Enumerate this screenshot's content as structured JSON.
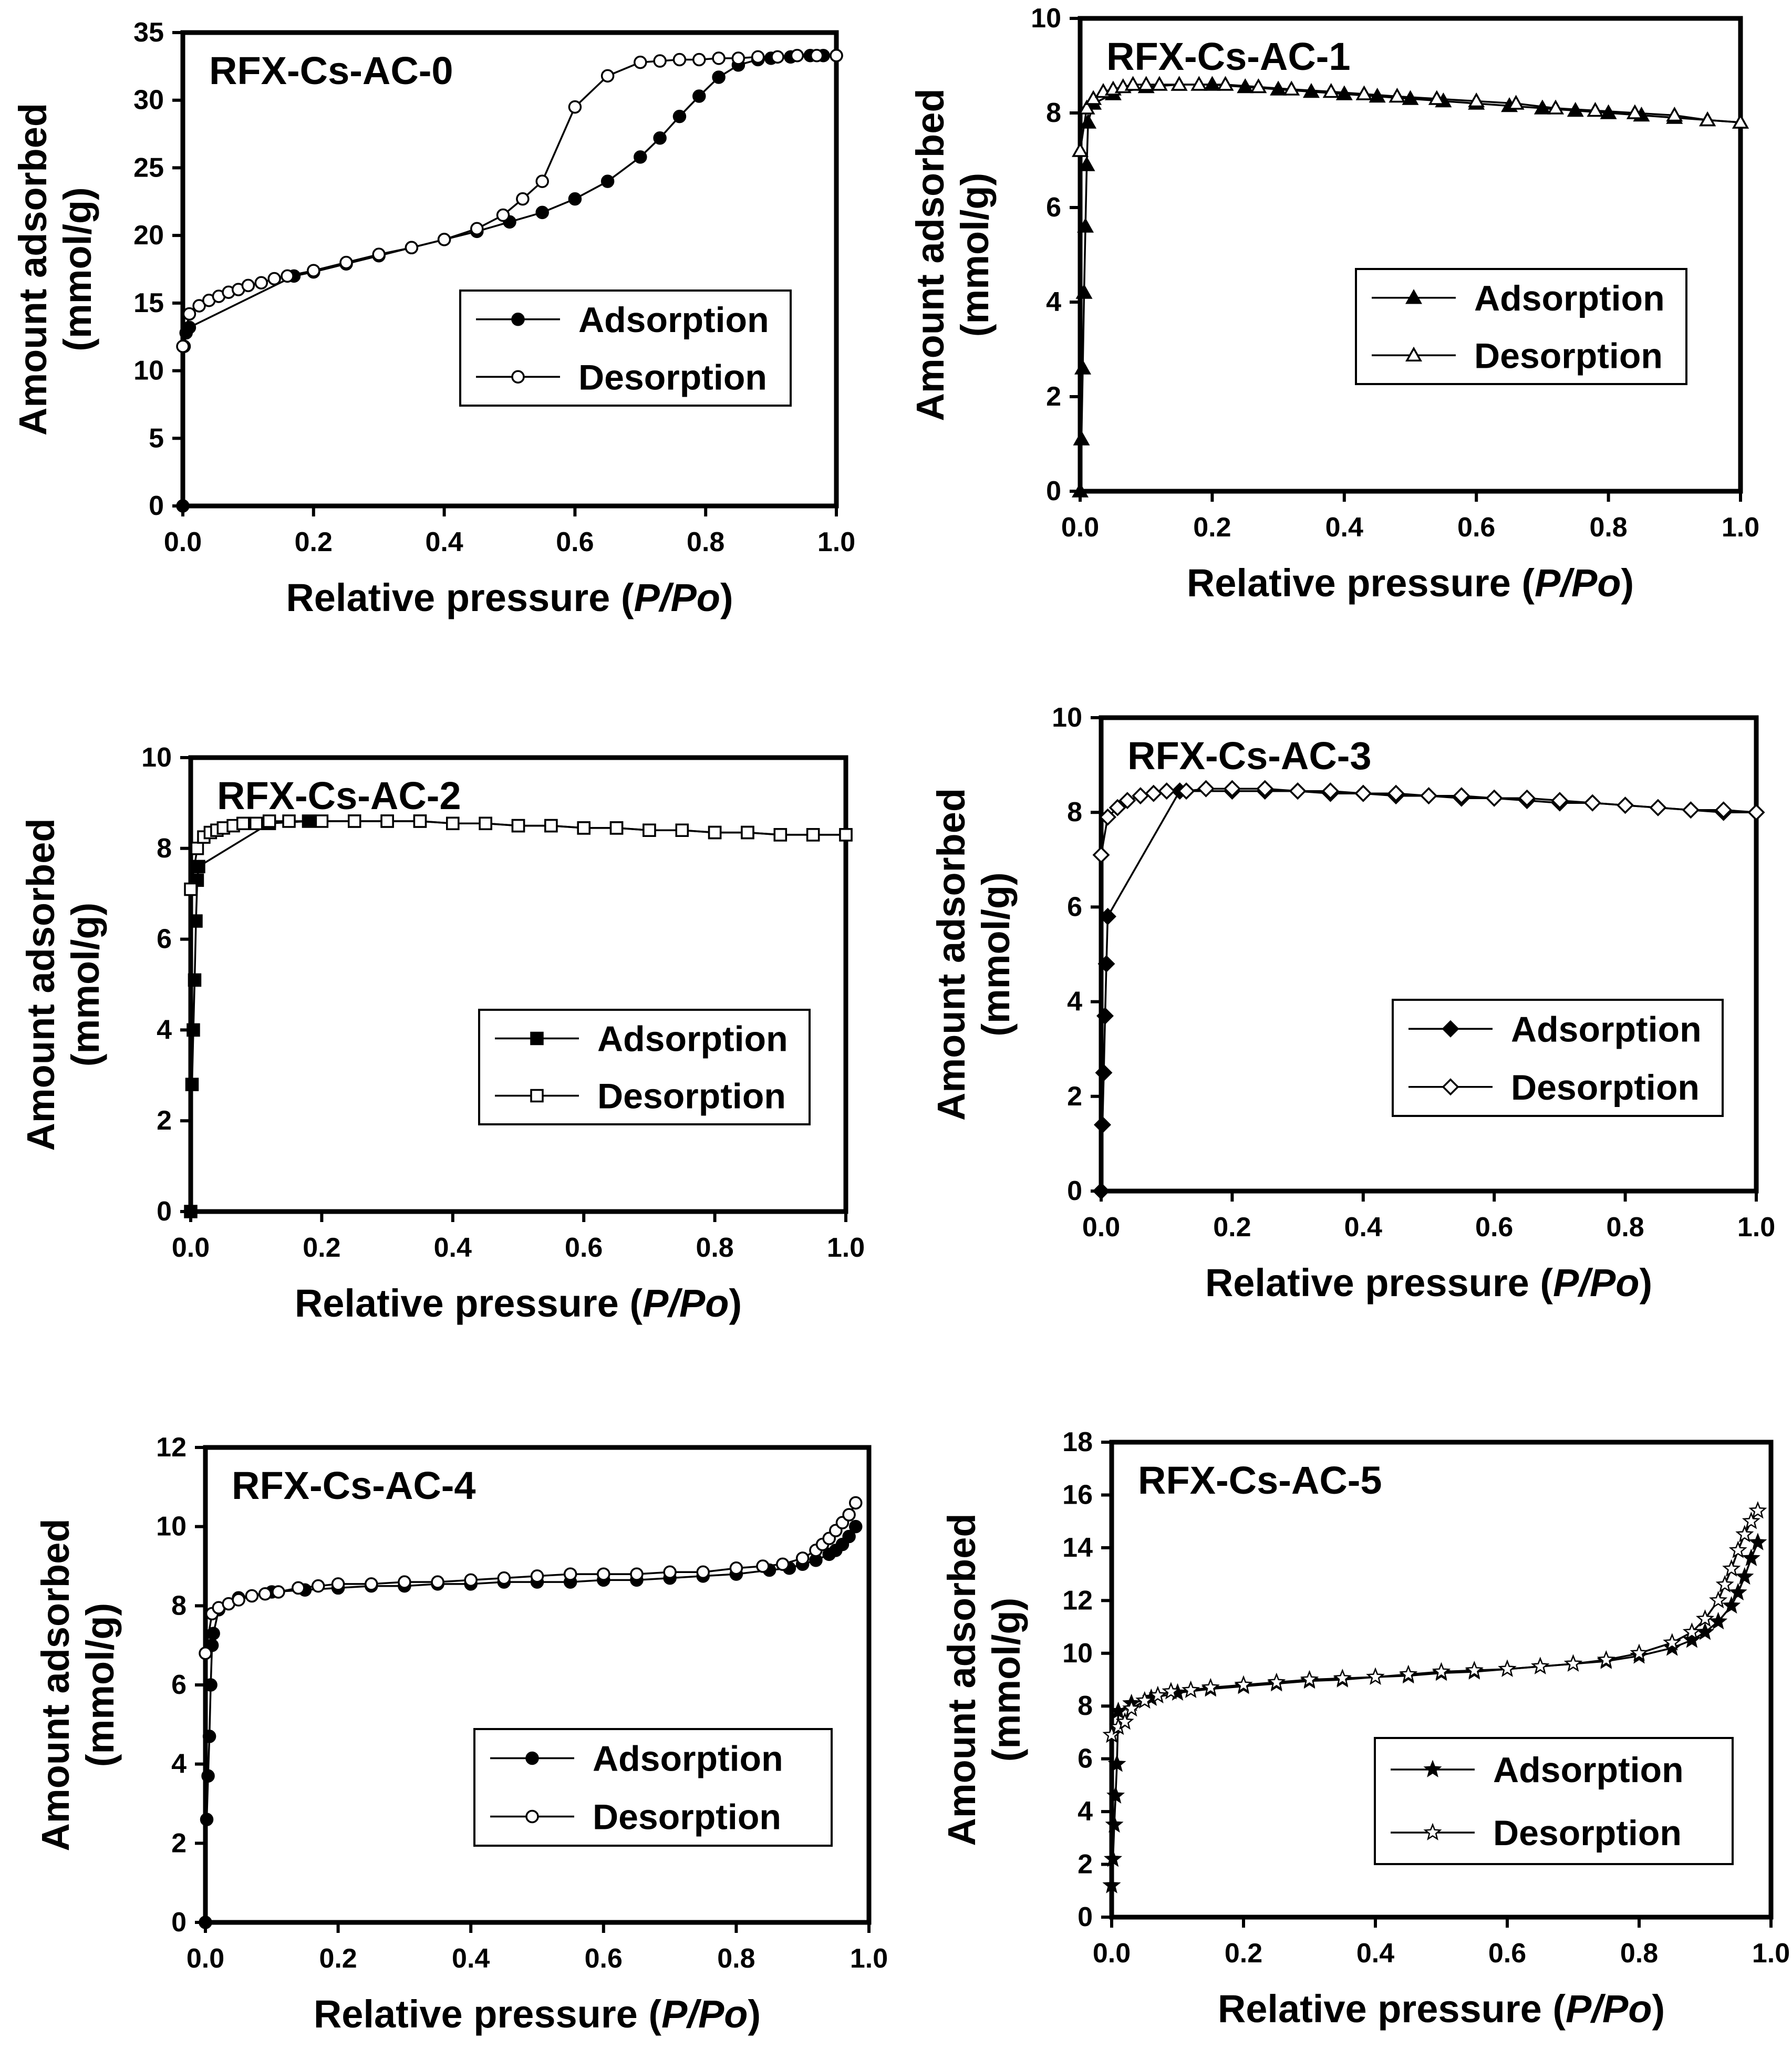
{
  "chart_data": [
    {
      "type": "scatter",
      "title": "RFX-Cs-AC-0",
      "xlabel_main": "Relative pressure (",
      "xlabel_italic": "P/Po",
      "xlabel_end": ")",
      "ylabel_line1": "Amount adsorbed",
      "ylabel_line2": "(mmol/g)",
      "xlim": [
        0,
        1
      ],
      "ylim": [
        0,
        35
      ],
      "xticks": [
        "0.0",
        "0.2",
        "0.4",
        "0.6",
        "0.8",
        "1.0"
      ],
      "yticks": [
        "0",
        "5",
        "10",
        "15",
        "20",
        "25",
        "30",
        "35"
      ],
      "grid": false,
      "legend_position": "center-right",
      "series": [
        {
          "name": "Adsorption",
          "marker": "circle-filled",
          "x": [
            0.0,
            0.002,
            0.005,
            0.01,
            0.17,
            0.2,
            0.25,
            0.3,
            0.35,
            0.4,
            0.45,
            0.5,
            0.55,
            0.6,
            0.65,
            0.7,
            0.73,
            0.76,
            0.79,
            0.82,
            0.85,
            0.88,
            0.9,
            0.93,
            0.96,
            0.98,
            1.0
          ],
          "y": [
            0,
            11.8,
            12.8,
            13.2,
            17.0,
            17.3,
            17.9,
            18.5,
            19.1,
            19.7,
            20.3,
            21.0,
            21.7,
            22.7,
            24.0,
            25.8,
            27.2,
            28.8,
            30.3,
            31.7,
            32.6,
            33.0,
            33.1,
            33.2,
            33.3,
            33.3,
            33.3
          ]
        },
        {
          "name": "Desorption",
          "marker": "circle-open",
          "x": [
            0.0,
            0.01,
            0.025,
            0.04,
            0.055,
            0.07,
            0.085,
            0.1,
            0.12,
            0.14,
            0.16,
            0.2,
            0.25,
            0.3,
            0.35,
            0.4,
            0.45,
            0.49,
            0.52,
            0.55,
            0.6,
            0.65,
            0.7,
            0.73,
            0.76,
            0.79,
            0.82,
            0.85,
            0.88,
            0.91,
            0.94,
            0.97,
            1.0
          ],
          "y": [
            11.8,
            14.2,
            14.8,
            15.2,
            15.5,
            15.8,
            16.0,
            16.3,
            16.5,
            16.8,
            17.0,
            17.4,
            18.0,
            18.6,
            19.1,
            19.7,
            20.5,
            21.5,
            22.7,
            24.0,
            29.5,
            31.8,
            32.8,
            32.9,
            33.0,
            33.0,
            33.1,
            33.1,
            33.2,
            33.2,
            33.3,
            33.3,
            33.3
          ]
        }
      ]
    },
    {
      "type": "scatter",
      "title": "RFX-Cs-AC-1",
      "xlabel_main": "Relative pressure (",
      "xlabel_italic": "P/Po",
      "xlabel_end": ")",
      "ylabel_line1": "Amount adsorbed",
      "ylabel_line2": "(mmol/g)",
      "xlim": [
        0,
        1
      ],
      "ylim": [
        0,
        10
      ],
      "xticks": [
        "0.0",
        "0.2",
        "0.4",
        "0.6",
        "0.8",
        "1.0"
      ],
      "yticks": [
        "0",
        "2",
        "4",
        "6",
        "8",
        "10"
      ],
      "grid": false,
      "legend_position": "center-right",
      "series": [
        {
          "name": "Adsorption",
          "marker": "triangle-filled",
          "x": [
            0.0,
            0.002,
            0.004,
            0.006,
            0.008,
            0.01,
            0.012,
            0.02,
            0.05,
            0.1,
            0.15,
            0.2,
            0.25,
            0.3,
            0.35,
            0.4,
            0.45,
            0.5,
            0.55,
            0.6,
            0.65,
            0.7,
            0.75,
            0.8,
            0.85,
            0.9,
            0.95,
            1.0
          ],
          "y": [
            0,
            1.1,
            2.6,
            4.2,
            5.6,
            6.9,
            7.8,
            8.2,
            8.4,
            8.55,
            8.6,
            8.6,
            8.55,
            8.5,
            8.45,
            8.4,
            8.35,
            8.3,
            8.25,
            8.2,
            8.15,
            8.1,
            8.05,
            8.0,
            7.95,
            7.9,
            7.85,
            7.8
          ]
        },
        {
          "name": "Desorption",
          "marker": "triangle-open",
          "x": [
            0.0,
            0.01,
            0.02,
            0.035,
            0.05,
            0.065,
            0.08,
            0.1,
            0.12,
            0.15,
            0.18,
            0.22,
            0.27,
            0.32,
            0.38,
            0.43,
            0.48,
            0.54,
            0.6,
            0.66,
            0.72,
            0.78,
            0.84,
            0.9,
            0.95,
            1.0
          ],
          "y": [
            7.2,
            8.1,
            8.3,
            8.45,
            8.5,
            8.55,
            8.6,
            8.6,
            8.6,
            8.6,
            8.6,
            8.6,
            8.55,
            8.5,
            8.45,
            8.4,
            8.35,
            8.3,
            8.25,
            8.2,
            8.1,
            8.05,
            8.0,
            7.95,
            7.85,
            7.8
          ]
        }
      ]
    },
    {
      "type": "scatter",
      "title": "RFX-Cs-AC-2",
      "xlabel_main": "Relative pressure (",
      "xlabel_italic": "P/Po",
      "xlabel_end": ")",
      "ylabel_line1": "Amount adsorbed",
      "ylabel_line2": "(mmol/g)",
      "xlim": [
        0,
        1
      ],
      "ylim": [
        0,
        10
      ],
      "xticks": [
        "0.0",
        "0.2",
        "0.4",
        "0.6",
        "0.8",
        "1.0"
      ],
      "yticks": [
        "0",
        "2",
        "4",
        "6",
        "8",
        "10"
      ],
      "grid": false,
      "legend_position": "center-right",
      "series": [
        {
          "name": "Adsorption",
          "marker": "square-filled",
          "x": [
            0.0,
            0.002,
            0.004,
            0.006,
            0.008,
            0.01,
            0.012,
            0.12,
            0.18,
            0.25,
            0.3,
            0.35,
            0.4,
            0.45,
            0.5,
            0.55,
            0.6,
            0.65,
            0.7,
            0.75,
            0.8,
            0.85,
            0.9,
            0.95,
            1.0
          ],
          "y": [
            0,
            2.8,
            4.0,
            5.1,
            6.4,
            7.3,
            7.6,
            8.55,
            8.6,
            8.6,
            8.6,
            8.6,
            8.55,
            8.55,
            8.5,
            8.5,
            8.45,
            8.45,
            8.4,
            8.4,
            8.35,
            8.35,
            8.3,
            8.3,
            8.3
          ]
        },
        {
          "name": "Desorption",
          "marker": "square-open",
          "x": [
            0.0,
            0.01,
            0.02,
            0.03,
            0.04,
            0.05,
            0.065,
            0.08,
            0.1,
            0.12,
            0.15,
            0.2,
            0.25,
            0.3,
            0.35,
            0.4,
            0.45,
            0.5,
            0.55,
            0.6,
            0.65,
            0.7,
            0.75,
            0.8,
            0.85,
            0.9,
            0.95,
            1.0
          ],
          "y": [
            7.1,
            8.0,
            8.25,
            8.35,
            8.4,
            8.45,
            8.5,
            8.55,
            8.55,
            8.6,
            8.6,
            8.6,
            8.6,
            8.6,
            8.6,
            8.55,
            8.55,
            8.5,
            8.5,
            8.45,
            8.45,
            8.4,
            8.4,
            8.35,
            8.35,
            8.3,
            8.3,
            8.3
          ]
        }
      ]
    },
    {
      "type": "scatter",
      "title": "RFX-Cs-AC-3",
      "xlabel_main": "Relative pressure (",
      "xlabel_italic": "P/Po",
      "xlabel_end": ")",
      "ylabel_line1": "Amount adsorbed",
      "ylabel_line2": "(mmol/g)",
      "xlim": [
        0,
        1
      ],
      "ylim": [
        0,
        10
      ],
      "xticks": [
        "0.0",
        "0.2",
        "0.4",
        "0.6",
        "0.8",
        "1.0"
      ],
      "yticks": [
        "0",
        "2",
        "4",
        "6",
        "8",
        "10"
      ],
      "grid": false,
      "legend_position": "center-right",
      "series": [
        {
          "name": "Adsorption",
          "marker": "diamond-filled",
          "x": [
            0.0,
            0.002,
            0.004,
            0.006,
            0.008,
            0.01,
            0.12,
            0.2,
            0.25,
            0.3,
            0.35,
            0.4,
            0.45,
            0.5,
            0.55,
            0.6,
            0.65,
            0.7,
            0.75,
            0.8,
            0.85,
            0.9,
            0.95,
            1.0
          ],
          "y": [
            0,
            1.4,
            2.5,
            3.7,
            4.8,
            5.8,
            8.45,
            8.45,
            8.45,
            8.45,
            8.4,
            8.4,
            8.35,
            8.35,
            8.3,
            8.3,
            8.25,
            8.2,
            8.2,
            8.15,
            8.1,
            8.05,
            8.0,
            8.0
          ]
        },
        {
          "name": "Desorption",
          "marker": "diamond-open",
          "x": [
            0.0,
            0.01,
            0.025,
            0.04,
            0.06,
            0.08,
            0.1,
            0.13,
            0.16,
            0.2,
            0.25,
            0.3,
            0.35,
            0.4,
            0.45,
            0.5,
            0.55,
            0.6,
            0.65,
            0.7,
            0.75,
            0.8,
            0.85,
            0.9,
            0.95,
            1.0
          ],
          "y": [
            7.1,
            7.9,
            8.1,
            8.25,
            8.35,
            8.4,
            8.45,
            8.45,
            8.5,
            8.5,
            8.5,
            8.45,
            8.45,
            8.4,
            8.4,
            8.35,
            8.35,
            8.3,
            8.3,
            8.25,
            8.2,
            8.15,
            8.1,
            8.05,
            8.05,
            8.0
          ]
        }
      ]
    },
    {
      "type": "scatter",
      "title": "RFX-Cs-AC-4",
      "xlabel_main": "Relative pressure (",
      "xlabel_italic": "P/Po",
      "xlabel_end": ")",
      "ylabel_line1": "Amount adsorbed",
      "ylabel_line2": "(mmol/g)",
      "xlim": [
        0,
        1
      ],
      "ylim": [
        0,
        12
      ],
      "xticks": [
        "0.0",
        "0.2",
        "0.4",
        "0.6",
        "0.8",
        "1.0"
      ],
      "yticks": [
        "0",
        "2",
        "4",
        "6",
        "8",
        "10",
        "12"
      ],
      "grid": false,
      "legend_position": "center-right",
      "series": [
        {
          "name": "Adsorption",
          "marker": "circle-filled",
          "x": [
            0.0,
            0.002,
            0.004,
            0.006,
            0.008,
            0.01,
            0.012,
            0.02,
            0.05,
            0.1,
            0.15,
            0.2,
            0.25,
            0.3,
            0.35,
            0.4,
            0.45,
            0.5,
            0.55,
            0.6,
            0.65,
            0.7,
            0.75,
            0.8,
            0.85,
            0.88,
            0.9,
            0.92,
            0.94,
            0.95,
            0.96,
            0.97,
            0.98
          ],
          "y": [
            0,
            2.6,
            3.7,
            4.7,
            6.0,
            7.0,
            7.3,
            7.9,
            8.2,
            8.35,
            8.4,
            8.45,
            8.5,
            8.5,
            8.55,
            8.55,
            8.6,
            8.6,
            8.6,
            8.65,
            8.65,
            8.7,
            8.75,
            8.8,
            8.9,
            8.95,
            9.05,
            9.15,
            9.3,
            9.4,
            9.55,
            9.75,
            10.0
          ]
        },
        {
          "name": "Desorption",
          "marker": "circle-open",
          "x": [
            0.0,
            0.01,
            0.02,
            0.035,
            0.05,
            0.07,
            0.09,
            0.11,
            0.14,
            0.17,
            0.2,
            0.25,
            0.3,
            0.35,
            0.4,
            0.45,
            0.5,
            0.55,
            0.6,
            0.65,
            0.7,
            0.75,
            0.8,
            0.84,
            0.87,
            0.9,
            0.92,
            0.93,
            0.94,
            0.95,
            0.96,
            0.97,
            0.98
          ],
          "y": [
            6.8,
            7.8,
            7.95,
            8.05,
            8.15,
            8.25,
            8.3,
            8.35,
            8.45,
            8.5,
            8.55,
            8.55,
            8.6,
            8.6,
            8.65,
            8.7,
            8.75,
            8.8,
            8.8,
            8.8,
            8.85,
            8.85,
            8.95,
            9.0,
            9.05,
            9.2,
            9.4,
            9.55,
            9.7,
            9.9,
            10.1,
            10.3,
            10.6
          ]
        }
      ]
    },
    {
      "type": "scatter",
      "title": "RFX-Cs-AC-5",
      "xlabel_main": "Relative pressure (",
      "xlabel_italic": "P/Po",
      "xlabel_end": ")",
      "ylabel_line1": "Amount adsorbed",
      "ylabel_line2": "(mmol/g)",
      "xlim": [
        0,
        1
      ],
      "ylim": [
        0,
        18
      ],
      "xticks": [
        "0.0",
        "0.2",
        "0.4",
        "0.6",
        "0.8",
        "1.0"
      ],
      "yticks": [
        "0",
        "2",
        "4",
        "6",
        "8",
        "10",
        "12",
        "14",
        "16",
        "18"
      ],
      "grid": false,
      "legend_position": "center-right",
      "series": [
        {
          "name": "Adsorption",
          "marker": "star-filled",
          "x": [
            0.0,
            0.002,
            0.004,
            0.006,
            0.008,
            0.01,
            0.03,
            0.06,
            0.1,
            0.15,
            0.2,
            0.25,
            0.3,
            0.35,
            0.4,
            0.45,
            0.5,
            0.55,
            0.6,
            0.65,
            0.7,
            0.75,
            0.8,
            0.85,
            0.88,
            0.9,
            0.92,
            0.94,
            0.95,
            0.96,
            0.97,
            0.98
          ],
          "y": [
            1.2,
            2.2,
            3.5,
            4.6,
            5.8,
            7.8,
            8.1,
            8.3,
            8.5,
            8.65,
            8.75,
            8.85,
            8.95,
            9.0,
            9.1,
            9.15,
            9.25,
            9.3,
            9.4,
            9.5,
            9.6,
            9.7,
            9.9,
            10.2,
            10.5,
            10.8,
            11.2,
            11.8,
            12.3,
            12.9,
            13.6,
            14.2
          ]
        },
        {
          "name": "Desorption",
          "marker": "star-open",
          "x": [
            0.0,
            0.01,
            0.02,
            0.03,
            0.05,
            0.07,
            0.09,
            0.12,
            0.15,
            0.2,
            0.25,
            0.3,
            0.35,
            0.4,
            0.45,
            0.5,
            0.55,
            0.6,
            0.65,
            0.7,
            0.75,
            0.8,
            0.85,
            0.88,
            0.9,
            0.92,
            0.93,
            0.94,
            0.95,
            0.96,
            0.97,
            0.98
          ],
          "y": [
            6.9,
            7.2,
            7.4,
            7.9,
            8.2,
            8.4,
            8.55,
            8.6,
            8.7,
            8.8,
            8.9,
            9.0,
            9.05,
            9.1,
            9.2,
            9.3,
            9.35,
            9.4,
            9.5,
            9.6,
            9.75,
            10.0,
            10.4,
            10.8,
            11.3,
            12.0,
            12.6,
            13.2,
            13.9,
            14.5,
            15.0,
            15.4
          ]
        }
      ]
    }
  ]
}
